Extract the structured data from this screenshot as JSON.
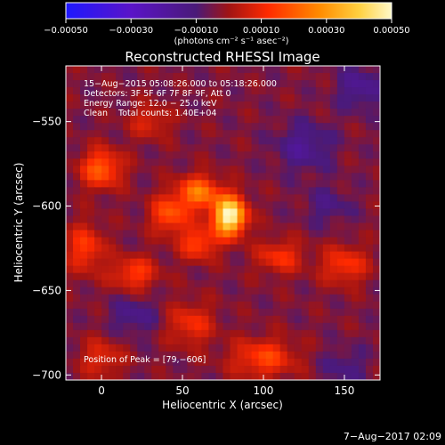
{
  "chart_data": {
    "type": "heatmap",
    "title": "Reconstructed RHESSI Image",
    "xlabel": "Heliocentric X (arcsec)",
    "ylabel": "Heliocentric Y (arcsec)",
    "xlim": [
      -22,
      172
    ],
    "ylim": [
      -703,
      -517
    ],
    "x_ticks": [
      0,
      50,
      100,
      150
    ],
    "x_tick_labels": [
      "0",
      "50",
      "100",
      "150"
    ],
    "y_ticks": [
      -550,
      -600,
      -650,
      -700
    ],
    "y_tick_labels": [
      "−550",
      "−600",
      "−650",
      "−700"
    ],
    "colorbar": {
      "range": [
        -0.0005,
        0.0005
      ],
      "tick_values": [
        -0.0005,
        -0.0003,
        -0.0001,
        0.0001,
        0.0003,
        0.0005
      ],
      "tick_labels": [
        "−0.00050",
        "−0.00030",
        "−0.00010",
        "0.00010",
        "0.00030",
        "0.00050"
      ],
      "units_label": "(photons cm⁻² s⁻¹ asec⁻²)",
      "colors": [
        "#1e18ff",
        "#5a14c8",
        "#4a1a78",
        "#a01414",
        "#ff2a00",
        "#ff8c00",
        "#ffd040",
        "#fff9c8"
      ]
    },
    "info_lines": [
      "15−Aug−2015 05:08:26.000 to 05:18:26.000",
      "Detectors: 3F 5F 6F 7F 8F 9F, Att 0",
      "Energy Range: 12.0 − 25.0 keV",
      "Clean    Total counts: 1.40E+04"
    ],
    "peak_label": "Position of Peak = [79,−606]",
    "peak": {
      "x": 79,
      "y": -606,
      "value": 0.0005
    },
    "sources": [
      {
        "x": 79,
        "y": -606,
        "amp": 0.00055,
        "sx": 7,
        "sy": 8
      },
      {
        "x": 60,
        "y": -592,
        "amp": 0.00028,
        "sx": 9,
        "sy": 7
      },
      {
        "x": 42,
        "y": -605,
        "amp": 0.00022,
        "sx": 8,
        "sy": 8
      },
      {
        "x": 60,
        "y": -622,
        "amp": 0.0002,
        "sx": 8,
        "sy": 7
      },
      {
        "x": 0,
        "y": -578,
        "amp": 0.00024,
        "sx": 9,
        "sy": 8
      },
      {
        "x": -10,
        "y": -625,
        "amp": 0.00018,
        "sx": 8,
        "sy": 10
      },
      {
        "x": 20,
        "y": -640,
        "amp": 0.00018,
        "sx": 10,
        "sy": 7
      },
      {
        "x": 110,
        "y": -630,
        "amp": 0.00016,
        "sx": 10,
        "sy": 7
      },
      {
        "x": 150,
        "y": -635,
        "amp": 0.00017,
        "sx": 10,
        "sy": 8
      },
      {
        "x": 100,
        "y": -690,
        "amp": 0.00019,
        "sx": 14,
        "sy": 8
      },
      {
        "x": 55,
        "y": -670,
        "amp": 0.00015,
        "sx": 10,
        "sy": 9
      },
      {
        "x": 0,
        "y": -690,
        "amp": 0.00013,
        "sx": 9,
        "sy": 8
      },
      {
        "x": 30,
        "y": -550,
        "amp": 0.00012,
        "sx": 9,
        "sy": 7
      },
      {
        "x": 125,
        "y": -565,
        "amp": -0.00012,
        "sx": 12,
        "sy": 10
      },
      {
        "x": 160,
        "y": -530,
        "amp": -0.00012,
        "sx": 10,
        "sy": 9
      },
      {
        "x": 140,
        "y": -600,
        "amp": -8e-05,
        "sx": 10,
        "sy": 8
      },
      {
        "x": 20,
        "y": -665,
        "amp": -0.0001,
        "sx": 10,
        "sy": 8
      },
      {
        "x": 150,
        "y": -695,
        "amp": -8e-05,
        "sx": 10,
        "sy": 8
      }
    ]
  },
  "footer": {
    "timestamp": "7−Aug−2017 02:09"
  }
}
